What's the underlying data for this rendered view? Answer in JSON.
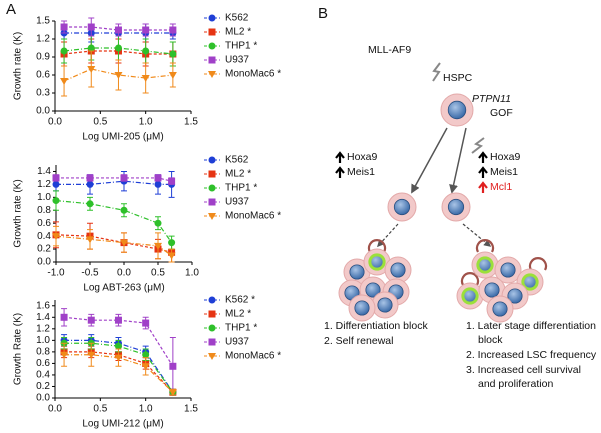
{
  "panel_labels": {
    "a": "A",
    "b": "B"
  },
  "chart_data": [
    {
      "type": "line",
      "ylabel": "Growth rate (K)",
      "xlabel": "Log UMI-205 (μM)",
      "x": [
        0.1,
        0.4,
        0.7,
        1.0,
        1.3
      ],
      "xlim": [
        0,
        1.5
      ],
      "xticks": [
        {
          "value": 0,
          "label": "0.0"
        },
        0.5,
        {
          "value": 1,
          "label": "1.0"
        },
        1.5
      ],
      "ylim": [
        0,
        1.5
      ],
      "yticks": [
        {
          "value": 0,
          "label": "0.0"
        },
        0.3,
        0.6,
        0.9,
        1.2,
        1.5
      ],
      "series": [
        {
          "name": "K562",
          "color": "#1f3fd6",
          "marker": "circle",
          "values": [
            1.3,
            1.3,
            1.3,
            1.3,
            1.3
          ],
          "errors": [
            0.1,
            0.15,
            0.1,
            0.15,
            0.1
          ]
        },
        {
          "name": "ML2 *",
          "color": "#e63312",
          "marker": "square",
          "values": [
            0.95,
            1.0,
            1.0,
            0.95,
            0.95
          ],
          "errors": [
            0.2,
            0.2,
            0.2,
            0.2,
            0.2
          ]
        },
        {
          "name": "THP1 *",
          "color": "#2ec02a",
          "marker": "circle",
          "values": [
            1.0,
            1.05,
            1.05,
            1.0,
            0.95
          ],
          "errors": [
            0.2,
            0.2,
            0.2,
            0.2,
            0.2
          ]
        },
        {
          "name": "U937",
          "color": "#a040c8",
          "marker": "square",
          "values": [
            1.4,
            1.4,
            1.35,
            1.35,
            1.35
          ],
          "errors": [
            0.1,
            0.15,
            0.1,
            0.1,
            0.1
          ]
        },
        {
          "name": "MonoMac6 *",
          "color": "#f08a1a",
          "marker": "triangle",
          "values": [
            0.5,
            0.7,
            0.6,
            0.55,
            0.6
          ],
          "errors": [
            0.25,
            0.3,
            0.25,
            0.25,
            0.2
          ]
        }
      ]
    },
    {
      "type": "line",
      "ylabel": "Growth rate (K)",
      "xlabel": "Log ABT-263 (μM)",
      "x": [
        -1.0,
        -0.5,
        0.0,
        0.5,
        0.7
      ],
      "xlim": [
        -1,
        1
      ],
      "xticks": [
        {
          "value": -1,
          "label": "-1.0"
        },
        -0.5,
        {
          "value": 0,
          "label": "0.0"
        },
        0.5,
        {
          "value": 1,
          "label": "1.0"
        }
      ],
      "ylim": [
        0,
        1.5
      ],
      "yticks": [
        {
          "value": 0,
          "label": "0.0"
        },
        0.2,
        0.4,
        0.6,
        0.8,
        {
          "value": 1,
          "label": "1.0"
        },
        1.2,
        1.4
      ],
      "series": [
        {
          "name": "K562",
          "color": "#1f3fd6",
          "marker": "circle",
          "values": [
            1.2,
            1.2,
            1.25,
            1.2,
            1.2
          ],
          "errors": [
            0.1,
            0.15,
            0.15,
            0.15,
            0.2
          ]
        },
        {
          "name": "ML2 *",
          "color": "#e63312",
          "marker": "square",
          "values": [
            0.42,
            0.4,
            0.3,
            0.2,
            0.15
          ],
          "errors": [
            0.2,
            0.2,
            0.15,
            0.15,
            0.15
          ]
        },
        {
          "name": "THP1 *",
          "color": "#2ec02a",
          "marker": "circle",
          "values": [
            0.95,
            0.9,
            0.8,
            0.6,
            0.3
          ],
          "errors": [
            0.15,
            0.1,
            0.1,
            0.1,
            0.1
          ]
        },
        {
          "name": "U937",
          "color": "#a040c8",
          "marker": "square",
          "values": [
            1.3,
            1.3,
            1.3,
            1.3,
            1.25
          ],
          "errors": [
            0.05,
            0.05,
            0.05,
            0.05,
            0.05
          ]
        },
        {
          "name": "MonoMac6 *",
          "color": "#f08a1a",
          "marker": "triangle",
          "values": [
            0.4,
            0.35,
            0.3,
            0.25,
            0.1
          ],
          "errors": [
            0.15,
            0.15,
            0.15,
            0.2,
            0.1
          ]
        }
      ]
    },
    {
      "type": "line",
      "ylabel": "Growth Rate (K)",
      "xlabel": "Log UMI-212 (μM)",
      "x": [
        0.1,
        0.4,
        0.7,
        1.0,
        1.3
      ],
      "xlim": [
        0,
        1.5
      ],
      "xticks": [
        {
          "value": 0,
          "label": "0.0"
        },
        0.5,
        {
          "value": 1,
          "label": "1.0"
        },
        1.5
      ],
      "ylim": [
        0,
        1.7
      ],
      "yticks": [
        {
          "value": 0,
          "label": "0.0"
        },
        0.2,
        0.4,
        0.6,
        0.8,
        {
          "value": 1,
          "label": "1.0"
        },
        1.2,
        1.4,
        1.6
      ],
      "series": [
        {
          "name": "K562 *",
          "color": "#1f3fd6",
          "marker": "circle",
          "values": [
            1.0,
            1.0,
            0.95,
            0.8,
            0.1
          ],
          "errors": [
            0.1,
            0.1,
            0.1,
            0.1,
            0.05
          ]
        },
        {
          "name": "ML2 *",
          "color": "#e63312",
          "marker": "square",
          "values": [
            0.8,
            0.8,
            0.75,
            0.6,
            0.1
          ],
          "errors": [
            0.1,
            0.1,
            0.1,
            0.1,
            0.05
          ]
        },
        {
          "name": "THP1 *",
          "color": "#2ec02a",
          "marker": "circle",
          "values": [
            0.95,
            0.95,
            0.9,
            0.75,
            0.1
          ],
          "errors": [
            0.1,
            0.1,
            0.1,
            0.1,
            0.05
          ]
        },
        {
          "name": "U937",
          "color": "#a040c8",
          "marker": "square",
          "values": [
            1.4,
            1.35,
            1.35,
            1.3,
            0.55
          ],
          "errors": [
            0.15,
            0.1,
            0.1,
            0.1,
            0.5
          ]
        },
        {
          "name": "MonoMac6 *",
          "color": "#f08a1a",
          "marker": "triangle",
          "values": [
            0.75,
            0.75,
            0.7,
            0.55,
            0.1
          ],
          "errors": [
            0.2,
            0.2,
            0.15,
            0.15,
            0.05
          ]
        }
      ]
    }
  ],
  "diagram": {
    "mll": "MLL-AF9",
    "hspc": "HSPC",
    "ptpn11": "PTPN11",
    "gof": "GOF",
    "left_genes": [
      "Hoxa9",
      "Meis1"
    ],
    "right_genes": [
      "Hoxa9",
      "Meis1",
      "Mcl1"
    ],
    "left_list": [
      "1. Differentiation block",
      "2. Self renewal"
    ],
    "right_list": [
      "1. Later stage differentiation",
      "block",
      "2. Increased LSC frequency",
      "3. Increased cell survival",
      "and proliferation"
    ]
  }
}
